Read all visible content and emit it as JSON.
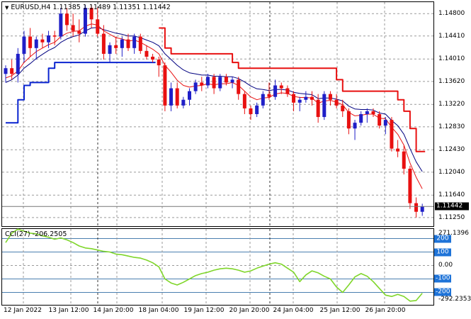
{
  "header": {
    "symbol": "EURUSD,H4",
    "open": "1.11385",
    "high": "1.11489",
    "low": "1.11351",
    "close": "1.11442"
  },
  "price_axis": {
    "labels": [
      "1.14800",
      "1.14410",
      "1.14010",
      "1.13620",
      "1.13220",
      "1.12830",
      "1.12430",
      "1.12040",
      "1.11640",
      "1.11250"
    ],
    "current": "1.11442"
  },
  "cci": {
    "title": "CCI(27)",
    "value": "-206.2505",
    "axis_max": "271.1396",
    "axis_min": "-292.2353",
    "levels": [
      "200",
      "100",
      "0.00",
      "-100",
      "-200"
    ]
  },
  "time_axis": [
    "12 Jan 2022",
    "13 Jan 12:00",
    "14 Jan 20:00",
    "18 Jan 04:00",
    "19 Jan 12:00",
    "20 Jan 20:00",
    "24 Jan 04:00",
    "25 Jan 12:00",
    "26 Jan 20:00"
  ],
  "colors": {
    "bull": "#1f1fc8",
    "bear": "#e81010",
    "ma_fast": "#e81010",
    "ma_slow": "#000080",
    "stop_up": "#0a24d0",
    "stop_down": "#e81010",
    "cci_line": "#7fd62a",
    "grid": "#9a9a9a",
    "level_badge": "#1e73d8"
  },
  "chart_data": {
    "type": "candlestick",
    "candles": [
      [
        1.1375,
        1.139,
        1.136,
        1.1385
      ],
      [
        1.1385,
        1.14,
        1.1365,
        1.1375
      ],
      [
        1.1375,
        1.142,
        1.136,
        1.141
      ],
      [
        1.141,
        1.145,
        1.1395,
        1.144
      ],
      [
        1.144,
        1.1455,
        1.1405,
        1.142
      ],
      [
        1.142,
        1.144,
        1.14,
        1.1435
      ],
      [
        1.1435,
        1.1445,
        1.142,
        1.143
      ],
      [
        1.143,
        1.145,
        1.142,
        1.1442
      ],
      [
        1.1442,
        1.145,
        1.1425,
        1.144
      ],
      [
        1.144,
        1.149,
        1.1435,
        1.148
      ],
      [
        1.148,
        1.149,
        1.145,
        1.146
      ],
      [
        1.146,
        1.148,
        1.144,
        1.145
      ],
      [
        1.145,
        1.147,
        1.143,
        1.1445
      ],
      [
        1.1445,
        1.1495,
        1.144,
        1.149
      ],
      [
        1.149,
        1.1495,
        1.1455,
        1.147
      ],
      [
        1.147,
        1.149,
        1.144,
        1.1445
      ],
      [
        1.1445,
        1.146,
        1.14,
        1.141
      ],
      [
        1.141,
        1.143,
        1.1395,
        1.1425
      ],
      [
        1.1425,
        1.144,
        1.141,
        1.142
      ],
      [
        1.142,
        1.144,
        1.1405,
        1.1435
      ],
      [
        1.1435,
        1.1445,
        1.1415,
        1.142
      ],
      [
        1.142,
        1.1445,
        1.141,
        1.144
      ],
      [
        1.144,
        1.1445,
        1.141,
        1.1415
      ],
      [
        1.1415,
        1.1425,
        1.14,
        1.1405
      ],
      [
        1.1405,
        1.141,
        1.1395,
        1.14
      ],
      [
        1.14,
        1.1405,
        1.137,
        1.139
      ],
      [
        1.139,
        1.1395,
        1.131,
        1.132
      ],
      [
        1.132,
        1.136,
        1.131,
        1.135
      ],
      [
        1.135,
        1.136,
        1.1315,
        1.132
      ],
      [
        1.132,
        1.1335,
        1.1315,
        1.133
      ],
      [
        1.133,
        1.135,
        1.132,
        1.1345
      ],
      [
        1.1345,
        1.1365,
        1.134,
        1.136
      ],
      [
        1.136,
        1.137,
        1.1345,
        1.1355
      ],
      [
        1.1355,
        1.1375,
        1.135,
        1.137
      ],
      [
        1.137,
        1.1375,
        1.134,
        1.135
      ],
      [
        1.135,
        1.1375,
        1.1345,
        1.137
      ],
      [
        1.137,
        1.1375,
        1.1355,
        1.136
      ],
      [
        1.136,
        1.137,
        1.135,
        1.1365
      ],
      [
        1.1365,
        1.137,
        1.133,
        1.134
      ],
      [
        1.134,
        1.1345,
        1.1305,
        1.1315
      ],
      [
        1.1315,
        1.132,
        1.1295,
        1.1305
      ],
      [
        1.1305,
        1.1325,
        1.13,
        1.132
      ],
      [
        1.132,
        1.1345,
        1.1315,
        1.134
      ],
      [
        1.134,
        1.136,
        1.133,
        1.1335
      ],
      [
        1.1335,
        1.1365,
        1.133,
        1.1355
      ],
      [
        1.1355,
        1.136,
        1.134,
        1.135
      ],
      [
        1.135,
        1.1355,
        1.1335,
        1.134
      ],
      [
        1.134,
        1.1345,
        1.131,
        1.1325
      ],
      [
        1.1325,
        1.1335,
        1.131,
        1.133
      ],
      [
        1.133,
        1.1345,
        1.1325,
        1.1335
      ],
      [
        1.1335,
        1.1345,
        1.132,
        1.133
      ],
      [
        1.133,
        1.134,
        1.129,
        1.13
      ],
      [
        1.13,
        1.1345,
        1.1295,
        1.134
      ],
      [
        1.134,
        1.1345,
        1.132,
        1.133
      ],
      [
        1.133,
        1.134,
        1.1315,
        1.132
      ],
      [
        1.132,
        1.133,
        1.13,
        1.131
      ],
      [
        1.131,
        1.1315,
        1.127,
        1.128
      ],
      [
        1.128,
        1.1295,
        1.126,
        1.129
      ],
      [
        1.129,
        1.131,
        1.1285,
        1.1305
      ],
      [
        1.1305,
        1.1315,
        1.129,
        1.131
      ],
      [
        1.131,
        1.1315,
        1.13,
        1.1305
      ],
      [
        1.1305,
        1.131,
        1.128,
        1.1285
      ],
      [
        1.1285,
        1.13,
        1.127,
        1.1295
      ],
      [
        1.1295,
        1.13,
        1.124,
        1.1245
      ],
      [
        1.1245,
        1.126,
        1.123,
        1.124
      ],
      [
        1.124,
        1.125,
        1.12,
        1.121
      ],
      [
        1.121,
        1.1215,
        1.114,
        1.115
      ],
      [
        1.115,
        1.116,
        1.1125,
        1.1135
      ],
      [
        1.1135,
        1.1149,
        1.1128,
        1.1144
      ]
    ],
    "ma_fast": [
      1.1368,
      1.1372,
      1.138,
      1.1395,
      1.1405,
      1.1414,
      1.142,
      1.1426,
      1.143,
      1.144,
      1.1446,
      1.1449,
      1.145,
      1.1458,
      1.1462,
      1.146,
      1.145,
      1.1444,
      1.1438,
      1.1436,
      1.1432,
      1.1434,
      1.143,
      1.1424,
      1.1418,
      1.141,
      1.139,
      1.1378,
      1.1364,
      1.1355,
      1.1352,
      1.1354,
      1.1355,
      1.1358,
      1.1356,
      1.1358,
      1.1358,
      1.136,
      1.1355,
      1.1345,
      1.1335,
      1.133,
      1.1333,
      1.1334,
      1.134,
      1.1342,
      1.1341,
      1.1336,
      1.1334,
      1.1334,
      1.1333,
      1.1324,
      1.1328,
      1.1329,
      1.1326,
      1.1321,
      1.1308,
      1.1302,
      1.1303,
      1.1305,
      1.1305,
      1.1298,
      1.1297,
      1.1282,
      1.127,
      1.1251,
      1.122,
      1.1195,
      1.1175
    ],
    "ma_slow": [
      1.136,
      1.1365,
      1.1373,
      1.1385,
      1.1393,
      1.1402,
      1.1409,
      1.1416,
      1.1421,
      1.143,
      1.1436,
      1.144,
      1.1443,
      1.145,
      1.1455,
      1.1456,
      1.1452,
      1.1449,
      1.1446,
      1.1444,
      1.1441,
      1.1441,
      1.1438,
      1.1434,
      1.143,
      1.1424,
      1.141,
      1.14,
      1.139,
      1.1382,
      1.1377,
      1.1375,
      1.1373,
      1.1373,
      1.1371,
      1.1371,
      1.137,
      1.137,
      1.1367,
      1.1361,
      1.1354,
      1.1349,
      1.1348,
      1.1346,
      1.1348,
      1.1348,
      1.1347,
      1.1343,
      1.1341,
      1.134,
      1.1339,
      1.1332,
      1.1333,
      1.1333,
      1.1331,
      1.1328,
      1.1319,
      1.1314,
      1.1313,
      1.1313,
      1.1312,
      1.1307,
      1.1305,
      1.1294,
      1.1285,
      1.127,
      1.1245,
      1.1222,
      1.1205
    ],
    "stop_up": [
      [
        0,
        1.129
      ],
      [
        1,
        1.129
      ],
      [
        2,
        1.133
      ],
      [
        3,
        1.1355
      ],
      [
        4,
        1.136
      ],
      [
        5,
        1.136
      ],
      [
        6,
        1.136
      ],
      [
        7,
        1.1385
      ],
      [
        8,
        1.1395
      ],
      [
        9,
        1.1395
      ],
      [
        10,
        1.1395
      ],
      [
        11,
        1.1395
      ],
      [
        12,
        1.1395
      ],
      [
        13,
        1.1395
      ],
      [
        14,
        1.1395
      ],
      [
        15,
        1.1395
      ],
      [
        16,
        1.1395
      ],
      [
        17,
        1.1395
      ],
      [
        18,
        1.1395
      ],
      [
        19,
        1.1395
      ],
      [
        20,
        1.1395
      ],
      [
        21,
        1.1395
      ],
      [
        22,
        1.1395
      ],
      [
        23,
        1.1395
      ],
      [
        24,
        1.1395
      ]
    ],
    "stop_down": [
      [
        25,
        1.1455
      ],
      [
        26,
        1.142
      ],
      [
        27,
        1.141
      ],
      [
        28,
        1.141
      ],
      [
        29,
        1.141
      ],
      [
        30,
        1.141
      ],
      [
        31,
        1.141
      ],
      [
        32,
        1.141
      ],
      [
        33,
        1.141
      ],
      [
        34,
        1.141
      ],
      [
        35,
        1.141
      ],
      [
        36,
        1.141
      ],
      [
        37,
        1.1395
      ],
      [
        38,
        1.1385
      ],
      [
        39,
        1.1385
      ],
      [
        40,
        1.1385
      ],
      [
        41,
        1.1385
      ],
      [
        42,
        1.1385
      ],
      [
        43,
        1.1385
      ],
      [
        44,
        1.1385
      ],
      [
        45,
        1.1385
      ],
      [
        46,
        1.1385
      ],
      [
        47,
        1.1385
      ],
      [
        48,
        1.1385
      ],
      [
        49,
        1.1385
      ],
      [
        50,
        1.1385
      ],
      [
        51,
        1.1385
      ],
      [
        52,
        1.1385
      ],
      [
        53,
        1.1385
      ],
      [
        54,
        1.1365
      ],
      [
        55,
        1.1345
      ],
      [
        56,
        1.1345
      ],
      [
        57,
        1.1345
      ],
      [
        58,
        1.1345
      ],
      [
        59,
        1.1345
      ],
      [
        60,
        1.1345
      ],
      [
        61,
        1.1345
      ],
      [
        62,
        1.1345
      ],
      [
        63,
        1.1345
      ],
      [
        64,
        1.133
      ],
      [
        65,
        1.131
      ],
      [
        66,
        1.128
      ],
      [
        67,
        1.124
      ],
      [
        68,
        1.124
      ]
    ],
    "cci": [
      170,
      240,
      270,
      255,
      240,
      235,
      220,
      210,
      195,
      205,
      190,
      170,
      145,
      130,
      125,
      115,
      105,
      100,
      85,
      80,
      70,
      60,
      55,
      40,
      20,
      -10,
      -100,
      -130,
      -145,
      -125,
      -100,
      -75,
      -60,
      -50,
      -35,
      -25,
      -20,
      -25,
      -35,
      -50,
      -40,
      -20,
      -5,
      10,
      20,
      10,
      -20,
      -50,
      -120,
      -70,
      -40,
      -55,
      -80,
      -100,
      -160,
      -200,
      -145,
      -85,
      -60,
      -80,
      -120,
      -170,
      -220,
      -230,
      -215,
      -230,
      -265,
      -260,
      -206
    ],
    "price_range": [
      1.111,
      1.15
    ],
    "cci_range": [
      -292.2353,
      271.1396
    ],
    "cci_levels": [
      200,
      100,
      0,
      -100,
      -200
    ]
  }
}
